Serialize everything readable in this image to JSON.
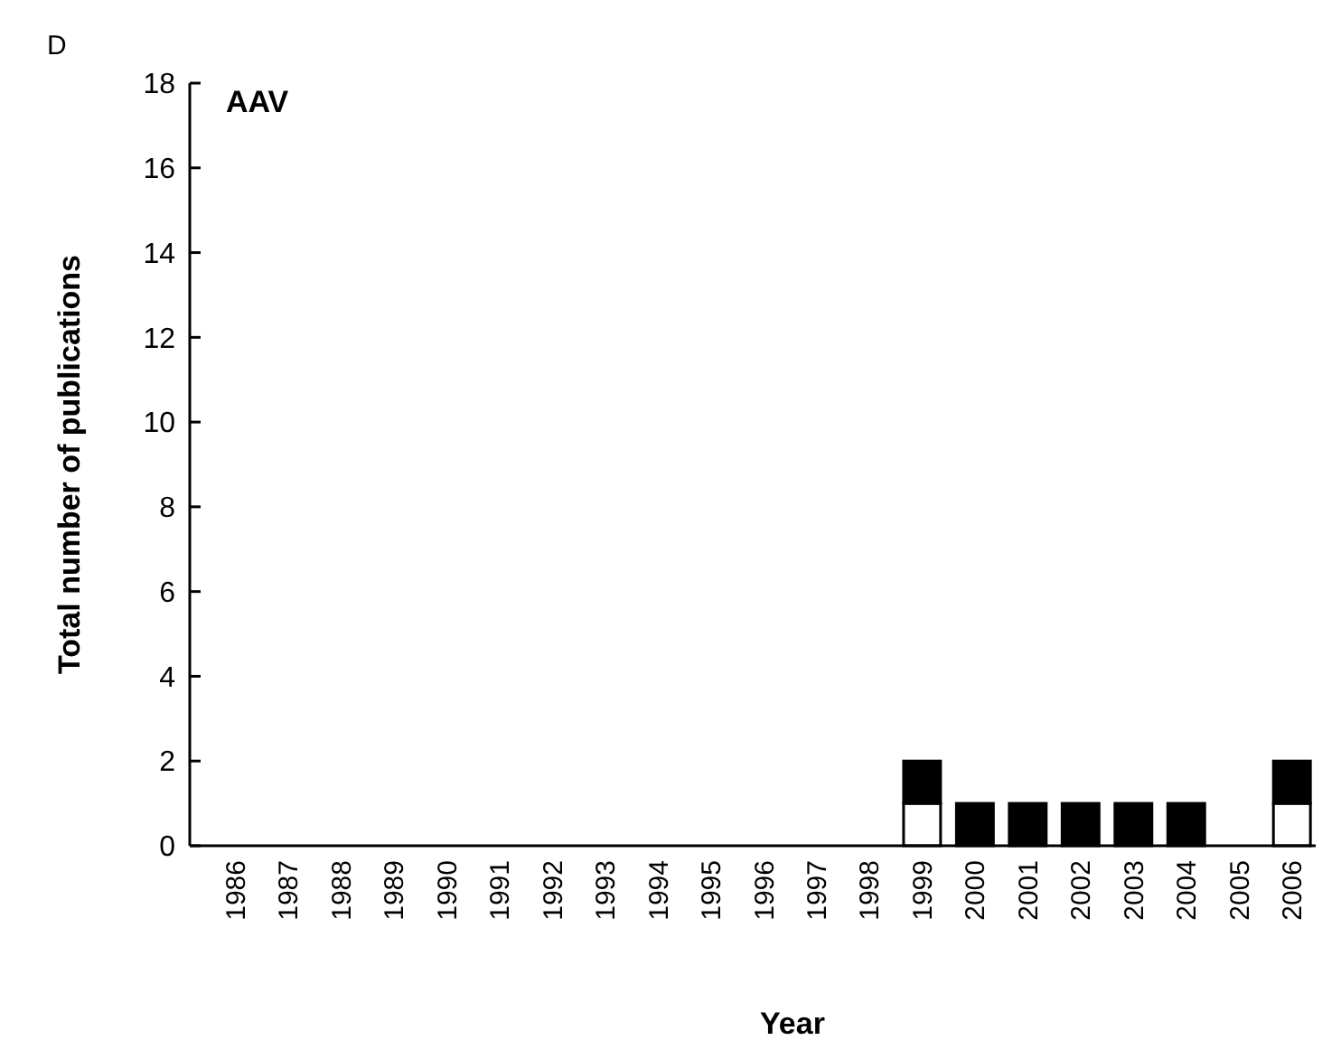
{
  "chart_data": {
    "type": "bar",
    "stacked": true,
    "title": "AAV",
    "xlabel": "Year",
    "ylabel": "Total number of publications",
    "annotations": [
      "D"
    ],
    "categories": [
      "1986",
      "1987",
      "1988",
      "1989",
      "1990",
      "1991",
      "1992",
      "1993",
      "1994",
      "1995",
      "1996",
      "1997",
      "1998",
      "1999",
      "2000",
      "2001",
      "2002",
      "2003",
      "2004",
      "2005",
      "2006"
    ],
    "series": [
      {
        "color": "#ffffff",
        "values": [
          0,
          0,
          0,
          0,
          0,
          0,
          0,
          0,
          0,
          0,
          0,
          0,
          0,
          1,
          0,
          0,
          0,
          0,
          0,
          0,
          1
        ]
      },
      {
        "color": "#000000",
        "values": [
          0,
          0,
          0,
          0,
          0,
          0,
          0,
          0,
          0,
          0,
          0,
          0,
          0,
          1,
          1,
          1,
          1,
          1,
          1,
          0,
          1
        ]
      }
    ],
    "ylim": [
      0,
      18
    ],
    "yticks": [
      0,
      2,
      4,
      6,
      8,
      10,
      12,
      14,
      16,
      18
    ],
    "grid": false
  }
}
